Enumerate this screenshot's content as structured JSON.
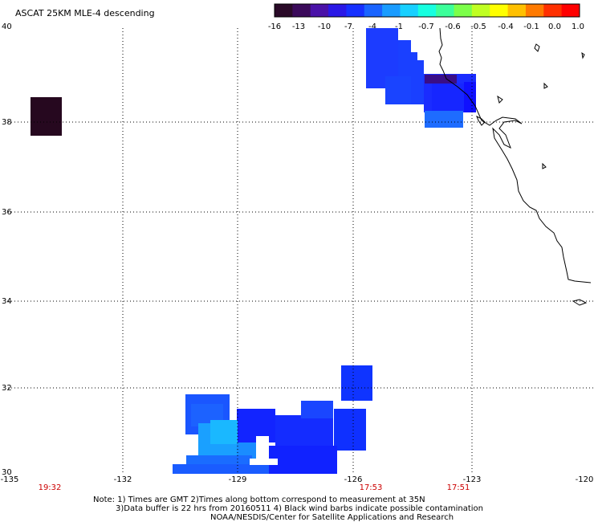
{
  "title": "ASCAT 25KM MLE-4 descending",
  "colorbar": {
    "colors": [
      "#2a0a28",
      "#3b0a5a",
      "#4a12a8",
      "#2a18e6",
      "#1630ff",
      "#1a64ff",
      "#1a9cff",
      "#18d0ff",
      "#17ffe0",
      "#3cff9a",
      "#7cff4a",
      "#c0ff22",
      "#ffff00",
      "#ffc000",
      "#ff7a00",
      "#ff3000",
      "#ff0000"
    ],
    "labels": [
      "-16",
      "-13",
      "-10",
      "-7",
      "-4",
      "-1",
      "-0.7",
      "-0.6",
      "-0.5",
      "-0.4",
      "-0.1",
      "0.0",
      "1.0"
    ]
  },
  "axes": {
    "lon_labels": [
      "-135",
      "-132",
      "-129",
      "-126",
      "-123",
      "-120"
    ],
    "lat_labels": [
      "40",
      "38",
      "36",
      "34",
      "32",
      "30"
    ],
    "lon_range": [
      -135,
      -120
    ],
    "lat_range": [
      30,
      40
    ]
  },
  "times": [
    "19:32",
    "17:53",
    "17:51"
  ],
  "notes": [
    "Note: 1) Times are GMT 2)Times along bottom correspond to measurement at 35N",
    "3)Data buffer is 22 hrs from 20160511 4) Black wind barbs indicate possible contamination",
    "NOAA/NESDIS/Center for Satellite Applications and Research"
  ]
}
